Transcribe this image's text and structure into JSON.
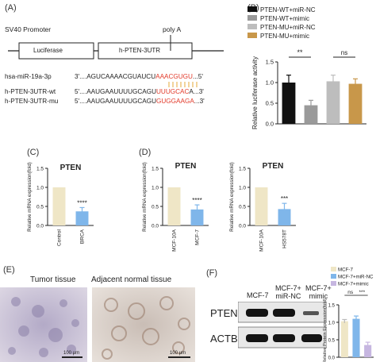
{
  "panelA": {
    "label": "(A)",
    "promoter": "SV40 Promoter",
    "polya": "poly A",
    "box1": "Luciferase",
    "box2": "h-PTEN-3UTR",
    "rows": [
      {
        "name": "hsa-miR-19a-3p",
        "prefix": "3'....AGUCAAAACGUAUCU",
        "red": "AAACGUGU",
        "suffix": "...5'"
      },
      {
        "name": "h-PTEN-3UTR-wt",
        "prefix": "5'....AAUGAAUUUUGCAGU",
        "red": "UUUGCAC",
        "suffix": "A...3'"
      },
      {
        "name": "h-PTEN-3UTR-mu",
        "prefix": "5'....AAUGAAUUUUGCAGU",
        "red": "GUGGAAGA",
        "suffix": "...3'"
      }
    ]
  },
  "panelB": {
    "label": "(B)"
  },
  "panelC": {
    "label": "(C)"
  },
  "panelD": {
    "label": "(D)"
  },
  "panelE": {
    "label": "(E)",
    "title1": "Tumor tissue",
    "title2": "Adjacent normal tissue",
    "scale": "100 μm"
  },
  "panelF": {
    "label": "(F)",
    "lanes": [
      "MCF-7",
      "MCF-7+\nmiR-NC",
      "MCF-7+\nmimic"
    ],
    "bands": [
      "PTEN",
      "ACTB"
    ]
  },
  "chart_data": [
    {
      "type": "bar",
      "panel": "B",
      "categories": [
        "PTEN-WT+miR-NC",
        "PTEN-WT+mimic",
        "PTEN-MU+miR-NC",
        "PTEN-MU+mimic"
      ],
      "values": [
        1.0,
        0.45,
        1.03,
        0.97
      ],
      "errors": [
        0.18,
        0.12,
        0.15,
        0.12
      ],
      "colors": [
        "#111111",
        "#9a9a9a",
        "#bdbdbd",
        "#c8974a"
      ],
      "legend": [
        "PTEN-WT+miR-NC",
        "PTEN-WT+mimic",
        "PTEN-MU+miR-NC",
        "PTEN-MU+mimic"
      ],
      "ylabel": "Relative luciferase activity",
      "ylim": [
        0,
        1.5
      ],
      "yticks": [
        "0.0",
        "0.5",
        "1.0",
        "1.5"
      ],
      "annotations": [
        "**",
        "ns"
      ]
    },
    {
      "type": "bar",
      "panel": "C",
      "title": "PTEN",
      "categories": [
        "Control",
        "BRCA"
      ],
      "values": [
        1.0,
        0.37
      ],
      "errors": [
        0,
        0.1
      ],
      "colors": [
        "#efe6c6",
        "#7fb6ea"
      ],
      "ylabel": "Relative mRNA expression(fold)",
      "ylim": [
        0,
        1.5
      ],
      "yticks": [
        "0.0",
        "0.5",
        "1.0",
        "1.5"
      ],
      "annotations": [
        "****"
      ]
    },
    {
      "type": "bar",
      "panel": "D1",
      "title": "PTEN",
      "categories": [
        "MCF-10A",
        "MCF-7"
      ],
      "values": [
        1.0,
        0.42
      ],
      "errors": [
        0,
        0.12
      ],
      "colors": [
        "#efe6c6",
        "#7fb6ea"
      ],
      "ylabel": "Relative mRNA expression(fold)",
      "ylim": [
        0,
        1.5
      ],
      "yticks": [
        "0.0",
        "0.5",
        "1.0",
        "1.5"
      ],
      "annotations": [
        "****"
      ]
    },
    {
      "type": "bar",
      "panel": "D2",
      "title": "PTEN",
      "categories": [
        "MCF-10A",
        "HS578T"
      ],
      "values": [
        1.0,
        0.43
      ],
      "errors": [
        0,
        0.15
      ],
      "colors": [
        "#efe6c6",
        "#7fb6ea"
      ],
      "ylabel": "Relative mRNA expression(fold)",
      "ylim": [
        0,
        1.5
      ],
      "yticks": [
        "0.0",
        "0.5",
        "1.0",
        "1.5"
      ],
      "annotations": [
        "***"
      ]
    },
    {
      "type": "bar",
      "panel": "F",
      "categories": [
        "MCF-7",
        "MCF-7+miR-NC",
        "MCF-7+mimic"
      ],
      "values": [
        1.03,
        1.1,
        0.35
      ],
      "errors": [
        0.05,
        0.08,
        0.08
      ],
      "colors": [
        "#efe6c6",
        "#7fb6ea",
        "#c6b6e0"
      ],
      "legend": [
        "MCF-7",
        "MCF-7+miR-NC",
        "MCF-7+mimic"
      ],
      "ylabel": "Relative Protein Expression(fold)",
      "ylim": [
        0,
        1.5
      ],
      "yticks": [
        "0.0",
        "0.5",
        "1.0",
        "1.5"
      ],
      "annotations": [
        "ns",
        "***"
      ]
    }
  ]
}
